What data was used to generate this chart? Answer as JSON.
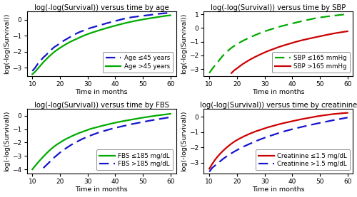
{
  "subplots": [
    {
      "title": "log(-log(Survival)) versus time by age",
      "ylabel": "log(-log(Survival))",
      "xlabel": "Time in months",
      "xlim": [
        8,
        62
      ],
      "ylim": [
        -3.5,
        0.5
      ],
      "yticks": [
        -3,
        -2,
        -1,
        0
      ],
      "xticks": [
        10,
        20,
        30,
        40,
        50,
        60
      ],
      "lines": [
        {
          "label": "Age ≤45 years",
          "color": "#1515cc",
          "linestyle": "dashed",
          "linewidth": 1.6,
          "x": [
            10,
            11,
            12,
            13,
            14,
            15,
            16,
            17,
            18,
            19,
            20,
            21,
            22,
            23,
            24,
            25,
            27,
            29,
            31,
            33,
            35,
            37,
            39,
            41,
            43,
            46,
            49,
            52,
            55,
            58,
            60
          ],
          "y": [
            -3.2,
            -3.0,
            -2.75,
            -2.55,
            -2.35,
            -2.2,
            -2.0,
            -1.85,
            -1.7,
            -1.6,
            -1.45,
            -1.35,
            -1.25,
            -1.15,
            -1.05,
            -0.95,
            -0.78,
            -0.65,
            -0.52,
            -0.42,
            -0.32,
            -0.22,
            -0.13,
            -0.04,
            0.05,
            0.15,
            0.22,
            0.28,
            0.35,
            0.4,
            0.43
          ]
        },
        {
          "label": "Age >45 years",
          "color": "#00aa00",
          "linestyle": "solid",
          "linewidth": 1.6,
          "x": [
            10,
            11,
            12,
            13,
            14,
            15,
            16,
            17,
            18,
            19,
            20,
            21,
            22,
            23,
            24,
            25,
            27,
            29,
            31,
            33,
            35,
            37,
            39,
            41,
            43,
            46,
            49,
            52,
            55,
            58,
            60
          ],
          "y": [
            -3.4,
            -3.25,
            -3.05,
            -2.85,
            -2.65,
            -2.48,
            -2.3,
            -2.15,
            -2.0,
            -1.88,
            -1.76,
            -1.65,
            -1.55,
            -1.45,
            -1.36,
            -1.28,
            -1.12,
            -0.97,
            -0.84,
            -0.73,
            -0.62,
            -0.52,
            -0.42,
            -0.33,
            -0.24,
            -0.12,
            -0.02,
            0.07,
            0.15,
            0.23,
            0.27
          ]
        }
      ],
      "legend_loc": "lower right"
    },
    {
      "title": "log(-log(Survival)) versus time by SBP",
      "ylabel": "log(-log(Survival))",
      "xlabel": "Time in months",
      "xlim": [
        8,
        62
      ],
      "ylim": [
        -3.5,
        1.2
      ],
      "yticks": [
        -3,
        -2,
        -1,
        0,
        1
      ],
      "xticks": [
        10,
        20,
        30,
        40,
        50,
        60
      ],
      "lines": [
        {
          "label": "SBP ≤165 mmHg",
          "color": "#00aa00",
          "linestyle": "dashed",
          "linewidth": 1.6,
          "x": [
            10,
            11,
            12,
            13,
            14,
            15,
            16,
            17,
            18,
            20,
            22,
            24,
            26,
            28,
            30,
            33,
            36,
            39,
            42,
            45,
            48,
            51,
            54,
            57,
            60
          ],
          "y": [
            -3.3,
            -3.0,
            -2.75,
            -2.5,
            -2.25,
            -2.0,
            -1.8,
            -1.62,
            -1.45,
            -1.18,
            -0.95,
            -0.75,
            -0.57,
            -0.4,
            -0.25,
            -0.05,
            0.13,
            0.28,
            0.43,
            0.57,
            0.7,
            0.8,
            0.88,
            0.95,
            1.02
          ]
        },
        {
          "label": "SBP >165 mmHg",
          "color": "#cc0000",
          "linestyle": "solid",
          "linewidth": 1.6,
          "x": [
            18,
            19,
            20,
            21,
            22,
            23,
            24,
            25,
            27,
            29,
            31,
            33,
            35,
            37,
            39,
            41,
            43,
            46,
            49,
            52,
            55,
            58,
            60
          ],
          "y": [
            -3.3,
            -3.1,
            -2.95,
            -2.8,
            -2.65,
            -2.52,
            -2.4,
            -2.28,
            -2.07,
            -1.88,
            -1.7,
            -1.55,
            -1.4,
            -1.27,
            -1.15,
            -1.03,
            -0.92,
            -0.78,
            -0.65,
            -0.52,
            -0.4,
            -0.3,
            -0.24
          ]
        }
      ],
      "legend_loc": "lower right"
    },
    {
      "title": "log(-log(Survival)) versus time by FBS",
      "ylabel": "log(-log(Survival))",
      "xlabel": "Time in months",
      "xlim": [
        8,
        62
      ],
      "ylim": [
        -4.3,
        0.5
      ],
      "yticks": [
        -4,
        -3,
        -2,
        -1,
        0
      ],
      "xticks": [
        10,
        20,
        30,
        40,
        50,
        60
      ],
      "lines": [
        {
          "label": "FBS ≤185 mg/dL",
          "color": "#00aa00",
          "linestyle": "solid",
          "linewidth": 1.6,
          "x": [
            10,
            11,
            12,
            13,
            14,
            15,
            16,
            17,
            18,
            19,
            20,
            21,
            22,
            23,
            24,
            25,
            27,
            29,
            31,
            33,
            35,
            37,
            39,
            41,
            43,
            46,
            49,
            52,
            55,
            58,
            60
          ],
          "y": [
            -4.0,
            -3.75,
            -3.5,
            -3.27,
            -3.05,
            -2.83,
            -2.63,
            -2.45,
            -2.28,
            -2.13,
            -2.0,
            -1.87,
            -1.75,
            -1.65,
            -1.55,
            -1.45,
            -1.28,
            -1.13,
            -0.98,
            -0.87,
            -0.76,
            -0.66,
            -0.56,
            -0.47,
            -0.39,
            -0.28,
            -0.17,
            -0.07,
            0.02,
            0.1,
            0.15
          ]
        },
        {
          "label": "FBS >185 mg/dL",
          "color": "#1515cc",
          "linestyle": "dashed",
          "linewidth": 1.6,
          "x": [
            14,
            16,
            18,
            20,
            22,
            24,
            26,
            28,
            30,
            32,
            34,
            36,
            38,
            40,
            43,
            46,
            49,
            52,
            55,
            58,
            60
          ],
          "y": [
            -3.9,
            -3.5,
            -3.1,
            -2.75,
            -2.45,
            -2.18,
            -1.95,
            -1.74,
            -1.56,
            -1.4,
            -1.25,
            -1.13,
            -1.01,
            -0.9,
            -0.76,
            -0.62,
            -0.5,
            -0.38,
            -0.27,
            -0.17,
            -0.1
          ]
        }
      ],
      "legend_loc": "lower right"
    },
    {
      "title": "log(-log(Survival)) versus time by creatinine",
      "ylabel": "log(-log(Survival))",
      "xlabel": "Time in months",
      "xlim": [
        8,
        62
      ],
      "ylim": [
        -3.7,
        0.5
      ],
      "yticks": [
        -3,
        -2,
        -1,
        0
      ],
      "xticks": [
        10,
        20,
        30,
        40,
        50,
        60
      ],
      "lines": [
        {
          "label": "Creatinine ≤1.5 mg/dL",
          "color": "#cc0000",
          "linestyle": "solid",
          "linewidth": 1.6,
          "x": [
            10,
            11,
            12,
            13,
            14,
            15,
            16,
            17,
            18,
            19,
            20,
            21,
            22,
            23,
            24,
            25,
            27,
            29,
            31,
            33,
            35,
            37,
            39,
            41,
            43,
            46,
            49,
            52,
            55,
            58,
            60
          ],
          "y": [
            -3.4,
            -3.1,
            -2.83,
            -2.6,
            -2.4,
            -2.22,
            -2.05,
            -1.9,
            -1.76,
            -1.63,
            -1.52,
            -1.42,
            -1.33,
            -1.24,
            -1.16,
            -1.08,
            -0.94,
            -0.82,
            -0.7,
            -0.6,
            -0.5,
            -0.41,
            -0.33,
            -0.25,
            -0.17,
            -0.07,
            0.03,
            0.11,
            0.18,
            0.23,
            0.26
          ]
        },
        {
          "label": "Creatinine >1.5 mg/dL",
          "color": "#1515cc",
          "linestyle": "dashed",
          "linewidth": 1.6,
          "x": [
            10,
            11,
            13,
            15,
            17,
            19,
            21,
            23,
            25,
            27,
            29,
            31,
            33,
            35,
            37,
            39,
            41,
            43,
            46,
            49,
            52,
            55,
            58,
            60
          ],
          "y": [
            -3.6,
            -3.35,
            -3.05,
            -2.75,
            -2.5,
            -2.28,
            -2.08,
            -1.9,
            -1.74,
            -1.58,
            -1.44,
            -1.31,
            -1.19,
            -1.07,
            -0.96,
            -0.86,
            -0.77,
            -0.68,
            -0.56,
            -0.44,
            -0.33,
            -0.22,
            -0.12,
            -0.05
          ]
        }
      ],
      "legend_loc": "lower right"
    }
  ],
  "fig_facecolor": "#ffffff",
  "axes_facecolor": "#ffffff",
  "title_fontsize": 7.2,
  "label_fontsize": 6.8,
  "tick_fontsize": 6.5,
  "legend_fontsize": 6.2
}
